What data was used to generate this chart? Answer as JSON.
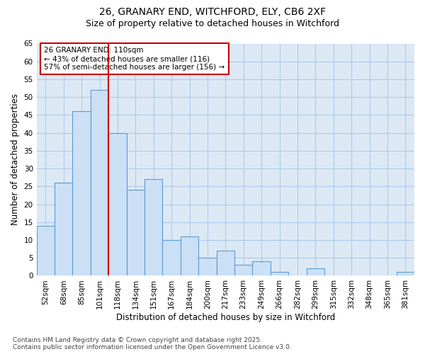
{
  "title_line1": "26, GRANARY END, WITCHFORD, ELY, CB6 2XF",
  "title_line2": "Size of property relative to detached houses in Witchford",
  "xlabel": "Distribution of detached houses by size in Witchford",
  "ylabel": "Number of detached properties",
  "categories": [
    "52sqm",
    "68sqm",
    "85sqm",
    "101sqm",
    "118sqm",
    "134sqm",
    "151sqm",
    "167sqm",
    "184sqm",
    "200sqm",
    "217sqm",
    "233sqm",
    "249sqm",
    "266sqm",
    "282sqm",
    "299sqm",
    "315sqm",
    "332sqm",
    "348sqm",
    "365sqm",
    "381sqm"
  ],
  "values": [
    14,
    26,
    46,
    52,
    40,
    24,
    27,
    10,
    11,
    5,
    7,
    3,
    4,
    1,
    0,
    2,
    0,
    0,
    0,
    0,
    1
  ],
  "bar_color": "#cce0f5",
  "bar_edge_color": "#5b9bd5",
  "reference_line_x": 3.5,
  "reference_line_color": "#cc0000",
  "annotation_text": "26 GRANARY END: 110sqm\n← 43% of detached houses are smaller (116)\n57% of semi-detached houses are larger (156) →",
  "annotation_box_facecolor": "#ffffff",
  "annotation_box_edgecolor": "#cc0000",
  "ylim": [
    0,
    65
  ],
  "yticks": [
    0,
    5,
    10,
    15,
    20,
    25,
    30,
    35,
    40,
    45,
    50,
    55,
    60,
    65
  ],
  "plot_bg_color": "#dce9f5",
  "fig_bg_color": "#ffffff",
  "grid_color": "#b0c8e8",
  "footer_text": "Contains HM Land Registry data © Crown copyright and database right 2025.\nContains public sector information licensed under the Open Government Licence v3.0.",
  "title_fontsize": 10,
  "subtitle_fontsize": 9,
  "axis_label_fontsize": 8.5,
  "tick_fontsize": 7.5,
  "annotation_fontsize": 7.5,
  "footer_fontsize": 6.5
}
